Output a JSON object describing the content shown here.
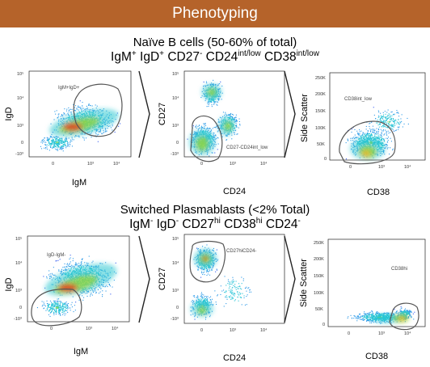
{
  "banner": {
    "title": "Phenotyping"
  },
  "section1": {
    "title": "Naïve B cells (50-60% of total)",
    "m1": "IgM",
    "s1": "+",
    "m2": "IgD",
    "s2": "+",
    "m3": "CD27",
    "s3": "-",
    "m4": "CD24",
    "s4": "int/low",
    "m5": "CD38",
    "s5": "int/low"
  },
  "section2": {
    "title": "Switched Plasmablasts (<2% Total)",
    "m1": "IgM",
    "s1": "-",
    "m2": "IgD",
    "s2": "-",
    "m3": "CD27",
    "s3": "hi",
    "m4": "CD38",
    "s4": "hi",
    "m5": "CD24",
    "s5": "-"
  },
  "plots": {
    "p1": {
      "xlabel": "IgM",
      "ylabel": "IgD",
      "gate": "IgM+IgD+"
    },
    "p2": {
      "xlabel": "CD24",
      "ylabel": "CD27",
      "gate": "CD27-CD24int_low"
    },
    "p3": {
      "xlabel": "CD38",
      "ylabel": "Side Scatter",
      "gate": "CD38int_low"
    },
    "p4": {
      "xlabel": "IgM",
      "ylabel": "IgD",
      "gate": "IgD-IgM-"
    },
    "p5": {
      "xlabel": "CD24",
      "ylabel": "CD27",
      "gate": "CD27hiCD24-"
    },
    "p6": {
      "xlabel": "CD38",
      "ylabel": "Side Scatter",
      "gate": "CD38hi"
    }
  },
  "ticks": {
    "log_y": [
      "10⁵",
      "10⁴",
      "10³",
      "0",
      "-10³"
    ],
    "log_x": [
      "0",
      "10³",
      "10⁴"
    ],
    "ssc": [
      "250K",
      "200K",
      "150K",
      "100K",
      "50K",
      "0"
    ]
  }
}
